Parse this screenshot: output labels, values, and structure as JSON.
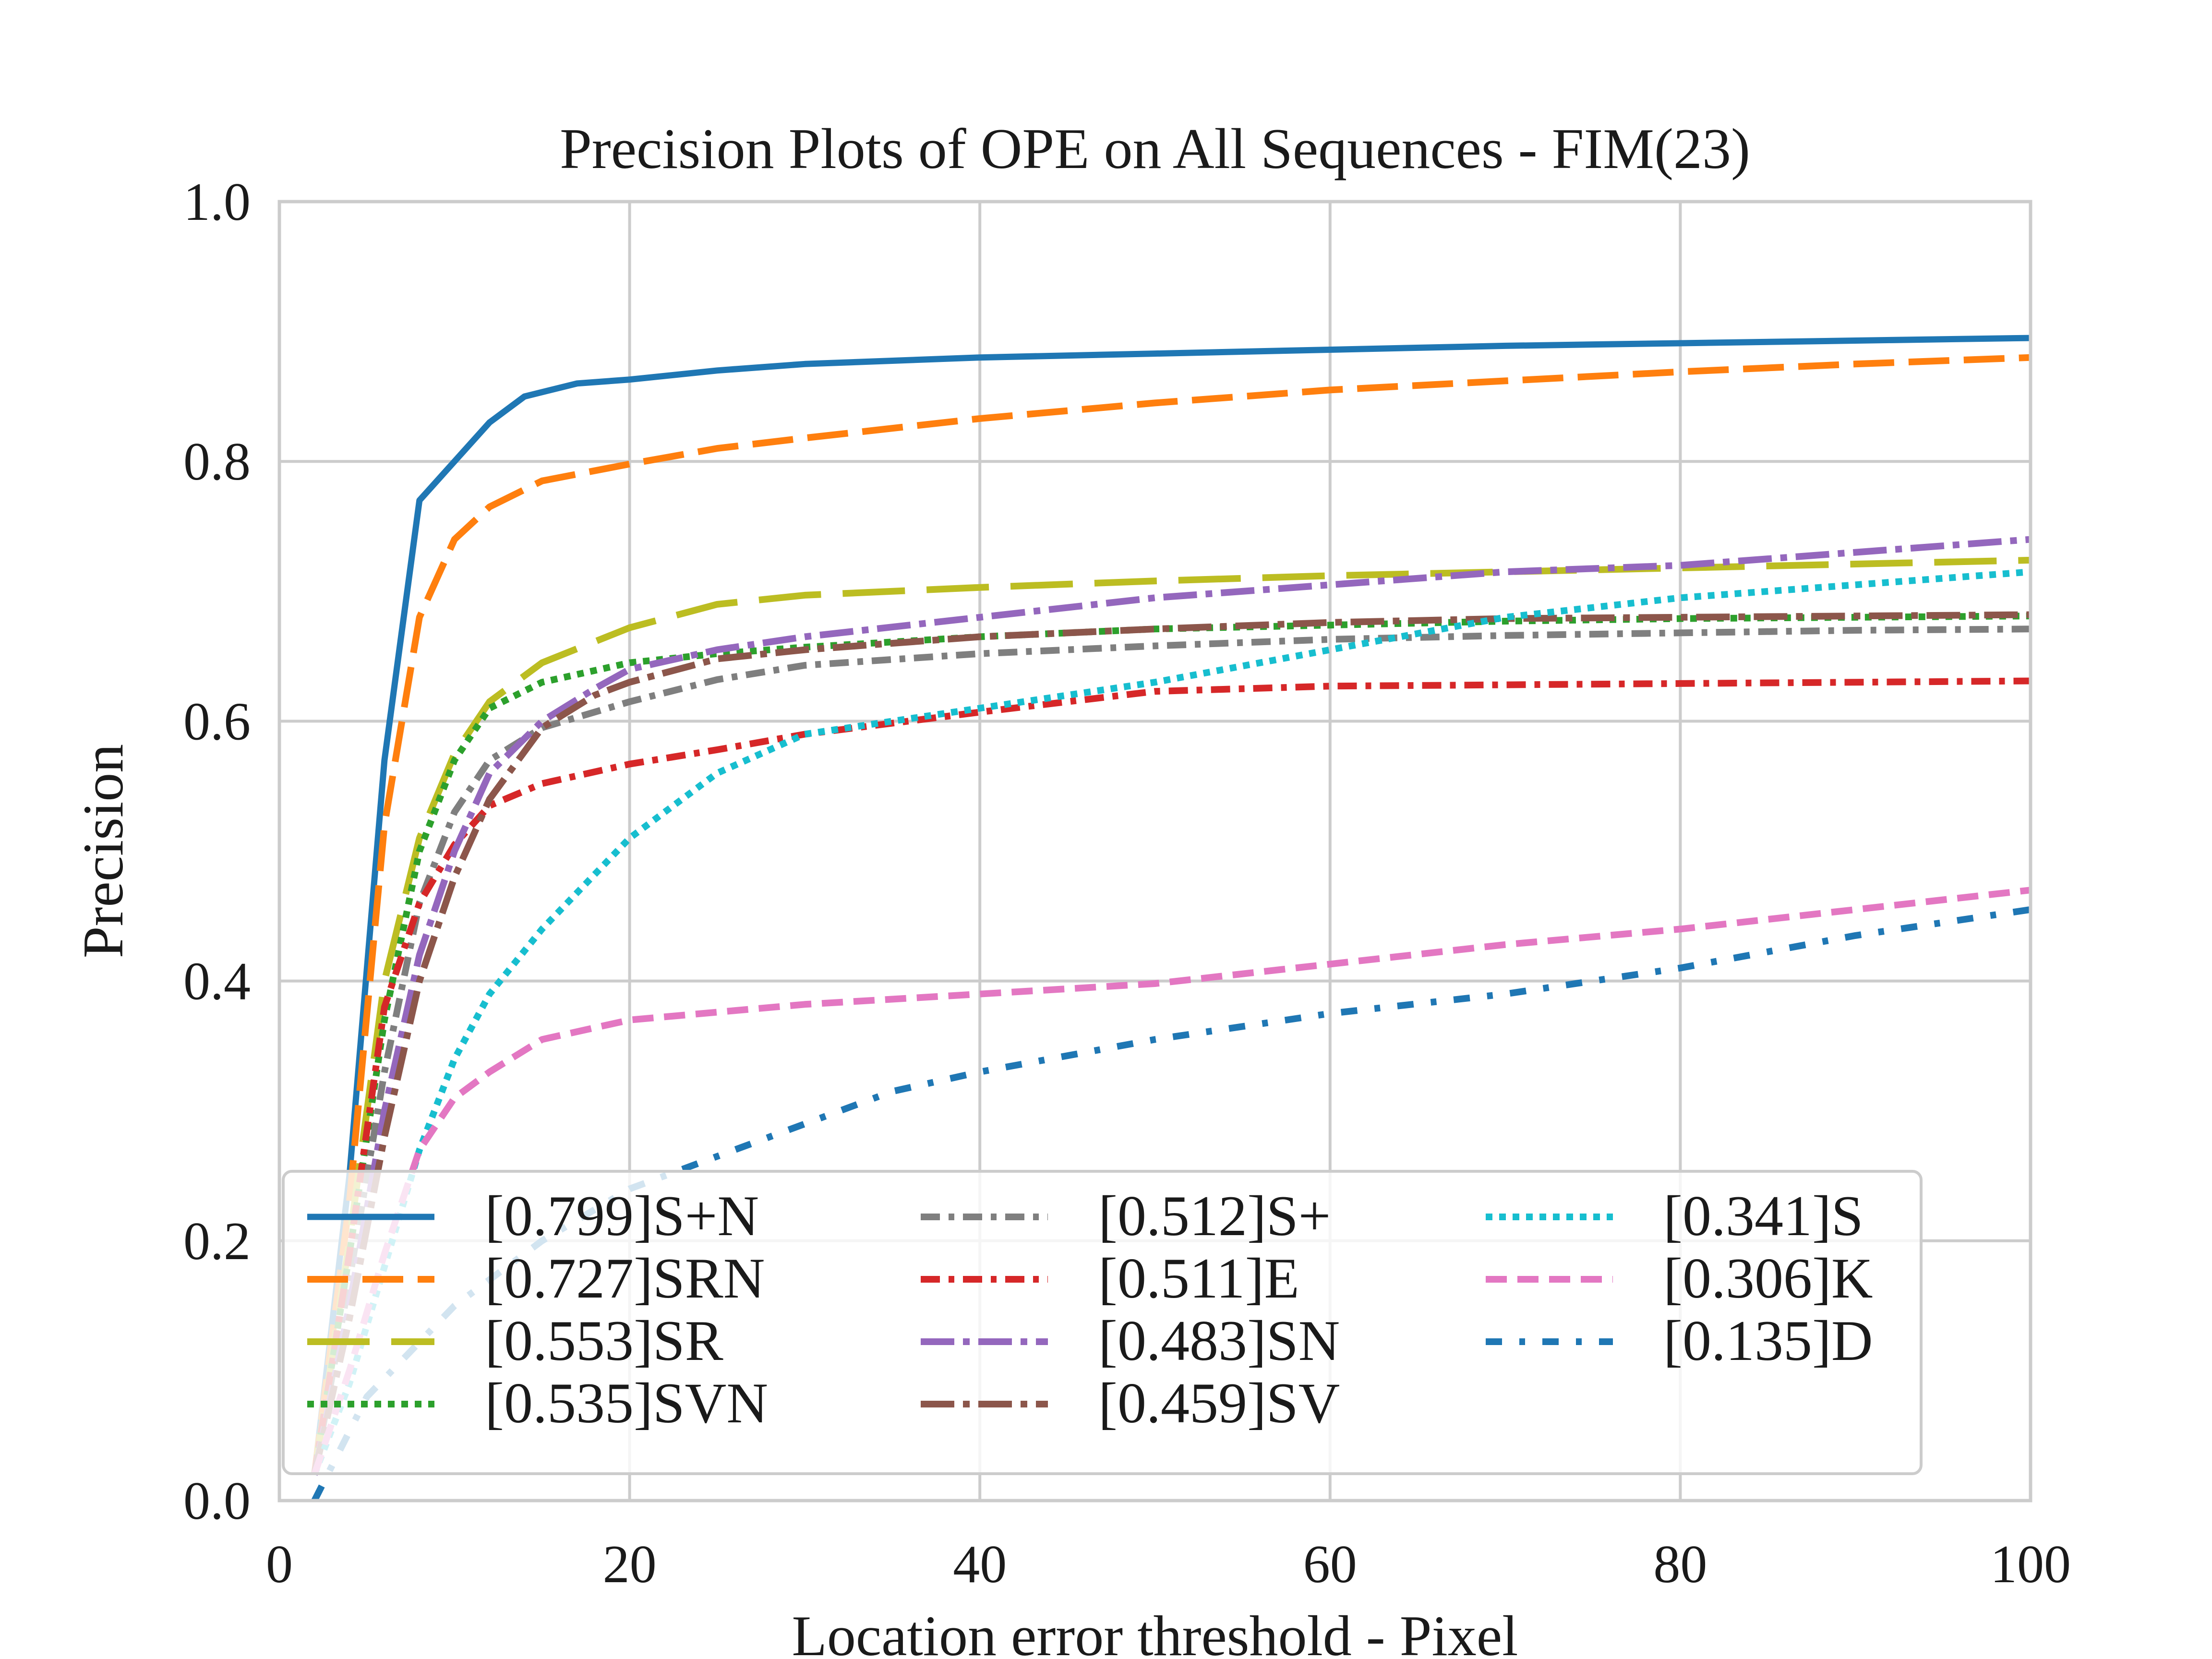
{
  "chart_data": {
    "type": "line",
    "title": "Precision Plots of OPE on All Sequences - FIM(23)",
    "xlabel": "Location error threshold - Pixel",
    "ylabel": "Precision",
    "xlim": [
      0,
      100
    ],
    "ylim": [
      0,
      1
    ],
    "x_ticks": [
      0,
      20,
      40,
      60,
      80,
      100
    ],
    "y_ticks": [
      0.0,
      0.2,
      0.4,
      0.6,
      0.8,
      1.0
    ],
    "x_tick_labels": [
      "0",
      "20",
      "40",
      "60",
      "80",
      "100"
    ],
    "y_tick_labels": [
      "0.0",
      "0.2",
      "0.4",
      "0.6",
      "0.8",
      "1.0"
    ],
    "grid": true,
    "legend_position": "lower-left",
    "legend_columns": 3,
    "series": [
      {
        "name": "[0.799]S+N",
        "color": "#1f77b4",
        "dash": "solid",
        "points": [
          [
            2,
            0.02
          ],
          [
            4,
            0.25
          ],
          [
            6,
            0.57
          ],
          [
            8,
            0.77
          ],
          [
            10,
            0.8
          ],
          [
            12,
            0.83
          ],
          [
            14,
            0.85
          ],
          [
            17,
            0.86
          ],
          [
            20,
            0.863
          ],
          [
            25,
            0.87
          ],
          [
            30,
            0.875
          ],
          [
            40,
            0.88
          ],
          [
            50,
            0.883
          ],
          [
            60,
            0.886
          ],
          [
            70,
            0.889
          ],
          [
            80,
            0.891
          ],
          [
            90,
            0.893
          ],
          [
            100,
            0.895
          ]
        ]
      },
      {
        "name": "[0.727]SRN",
        "color": "#ff7f0e",
        "dash": "long-dash",
        "points": [
          [
            2,
            0.02
          ],
          [
            4,
            0.23
          ],
          [
            6,
            0.52
          ],
          [
            8,
            0.68
          ],
          [
            10,
            0.74
          ],
          [
            12,
            0.765
          ],
          [
            15,
            0.785
          ],
          [
            20,
            0.798
          ],
          [
            25,
            0.81
          ],
          [
            30,
            0.818
          ],
          [
            40,
            0.833
          ],
          [
            50,
            0.845
          ],
          [
            60,
            0.855
          ],
          [
            70,
            0.862
          ],
          [
            80,
            0.869
          ],
          [
            90,
            0.875
          ],
          [
            100,
            0.88
          ]
        ]
      },
      {
        "name": "[0.553]SR",
        "color": "#bcbd22",
        "dash": "extra-long-dash",
        "points": [
          [
            2,
            0.02
          ],
          [
            4,
            0.2
          ],
          [
            6,
            0.4
          ],
          [
            8,
            0.51
          ],
          [
            10,
            0.575
          ],
          [
            12,
            0.615
          ],
          [
            15,
            0.645
          ],
          [
            20,
            0.672
          ],
          [
            25,
            0.69
          ],
          [
            30,
            0.697
          ],
          [
            40,
            0.703
          ],
          [
            50,
            0.708
          ],
          [
            60,
            0.712
          ],
          [
            70,
            0.715
          ],
          [
            80,
            0.718
          ],
          [
            90,
            0.721
          ],
          [
            100,
            0.724
          ]
        ]
      },
      {
        "name": "[0.535]SVN",
        "color": "#2ca02c",
        "dash": "dotted",
        "points": [
          [
            2,
            0.02
          ],
          [
            4,
            0.19
          ],
          [
            6,
            0.37
          ],
          [
            8,
            0.5
          ],
          [
            10,
            0.57
          ],
          [
            12,
            0.61
          ],
          [
            15,
            0.63
          ],
          [
            20,
            0.645
          ],
          [
            25,
            0.652
          ],
          [
            30,
            0.657
          ],
          [
            40,
            0.665
          ],
          [
            50,
            0.671
          ],
          [
            60,
            0.674
          ],
          [
            70,
            0.677
          ],
          [
            80,
            0.679
          ],
          [
            90,
            0.68
          ],
          [
            100,
            0.681
          ]
        ]
      },
      {
        "name": "[0.512]S+",
        "color": "#7f7f7f",
        "dash": "dash-dot",
        "points": [
          [
            2,
            0.02
          ],
          [
            4,
            0.17
          ],
          [
            6,
            0.33
          ],
          [
            8,
            0.46
          ],
          [
            10,
            0.53
          ],
          [
            12,
            0.57
          ],
          [
            15,
            0.595
          ],
          [
            20,
            0.615
          ],
          [
            25,
            0.632
          ],
          [
            30,
            0.643
          ],
          [
            40,
            0.652
          ],
          [
            50,
            0.658
          ],
          [
            60,
            0.663
          ],
          [
            70,
            0.666
          ],
          [
            80,
            0.668
          ],
          [
            90,
            0.67
          ],
          [
            100,
            0.671
          ]
        ]
      },
      {
        "name": "[0.511]E",
        "color": "#d62728",
        "dash": "dash-dot",
        "points": [
          [
            2,
            0.02
          ],
          [
            4,
            0.19
          ],
          [
            6,
            0.38
          ],
          [
            8,
            0.46
          ],
          [
            10,
            0.505
          ],
          [
            12,
            0.535
          ],
          [
            15,
            0.552
          ],
          [
            20,
            0.567
          ],
          [
            25,
            0.578
          ],
          [
            30,
            0.59
          ],
          [
            40,
            0.607
          ],
          [
            50,
            0.623
          ],
          [
            60,
            0.627
          ],
          [
            70,
            0.628
          ],
          [
            80,
            0.629
          ],
          [
            90,
            0.63
          ],
          [
            100,
            0.631
          ]
        ]
      },
      {
        "name": "[0.483]SN",
        "color": "#9467bd",
        "dash": "long-dash-dot",
        "points": [
          [
            2,
            0.02
          ],
          [
            4,
            0.15
          ],
          [
            6,
            0.3
          ],
          [
            8,
            0.42
          ],
          [
            10,
            0.5
          ],
          [
            12,
            0.56
          ],
          [
            15,
            0.6
          ],
          [
            18,
            0.625
          ],
          [
            20,
            0.64
          ],
          [
            25,
            0.655
          ],
          [
            30,
            0.665
          ],
          [
            40,
            0.68
          ],
          [
            50,
            0.695
          ],
          [
            60,
            0.705
          ],
          [
            70,
            0.715
          ],
          [
            80,
            0.72
          ],
          [
            90,
            0.73
          ],
          [
            100,
            0.74
          ]
        ]
      },
      {
        "name": "[0.459]SV",
        "color": "#8c564b",
        "dash": "long-dash-dot",
        "points": [
          [
            2,
            0.02
          ],
          [
            4,
            0.14
          ],
          [
            6,
            0.28
          ],
          [
            8,
            0.4
          ],
          [
            10,
            0.48
          ],
          [
            12,
            0.54
          ],
          [
            15,
            0.595
          ],
          [
            18,
            0.62
          ],
          [
            20,
            0.63
          ],
          [
            25,
            0.648
          ],
          [
            30,
            0.655
          ],
          [
            40,
            0.665
          ],
          [
            50,
            0.671
          ],
          [
            60,
            0.676
          ],
          [
            70,
            0.679
          ],
          [
            80,
            0.68
          ],
          [
            90,
            0.681
          ],
          [
            100,
            0.682
          ]
        ]
      },
      {
        "name": "[0.341]S",
        "color": "#17becf",
        "dash": "dotted",
        "points": [
          [
            2,
            0.02
          ],
          [
            4,
            0.09
          ],
          [
            6,
            0.18
          ],
          [
            8,
            0.27
          ],
          [
            10,
            0.34
          ],
          [
            12,
            0.39
          ],
          [
            15,
            0.44
          ],
          [
            20,
            0.51
          ],
          [
            25,
            0.56
          ],
          [
            30,
            0.59
          ],
          [
            40,
            0.61
          ],
          [
            50,
            0.63
          ],
          [
            60,
            0.655
          ],
          [
            70,
            0.68
          ],
          [
            80,
            0.695
          ],
          [
            90,
            0.705
          ],
          [
            100,
            0.715
          ]
        ]
      },
      {
        "name": "[0.306]K",
        "color": "#e377c2",
        "dash": "short-dash",
        "points": [
          [
            2,
            0.02
          ],
          [
            4,
            0.1
          ],
          [
            6,
            0.19
          ],
          [
            8,
            0.27
          ],
          [
            10,
            0.31
          ],
          [
            12,
            0.33
          ],
          [
            15,
            0.355
          ],
          [
            20,
            0.37
          ],
          [
            25,
            0.376
          ],
          [
            30,
            0.382
          ],
          [
            40,
            0.39
          ],
          [
            50,
            0.398
          ],
          [
            60,
            0.413
          ],
          [
            70,
            0.428
          ],
          [
            80,
            0.44
          ],
          [
            90,
            0.455
          ],
          [
            100,
            0.47
          ]
        ]
      },
      {
        "name": "[0.135]D",
        "color": "#1f77b4",
        "dash": "sparse-dash-dot",
        "points": [
          [
            2,
            0.0
          ],
          [
            5,
            0.08
          ],
          [
            10,
            0.15
          ],
          [
            15,
            0.2
          ],
          [
            20,
            0.24
          ],
          [
            25,
            0.265
          ],
          [
            30,
            0.29
          ],
          [
            35,
            0.315
          ],
          [
            40,
            0.33
          ],
          [
            50,
            0.355
          ],
          [
            60,
            0.375
          ],
          [
            70,
            0.39
          ],
          [
            80,
            0.41
          ],
          [
            90,
            0.435
          ],
          [
            100,
            0.455
          ]
        ]
      }
    ]
  }
}
